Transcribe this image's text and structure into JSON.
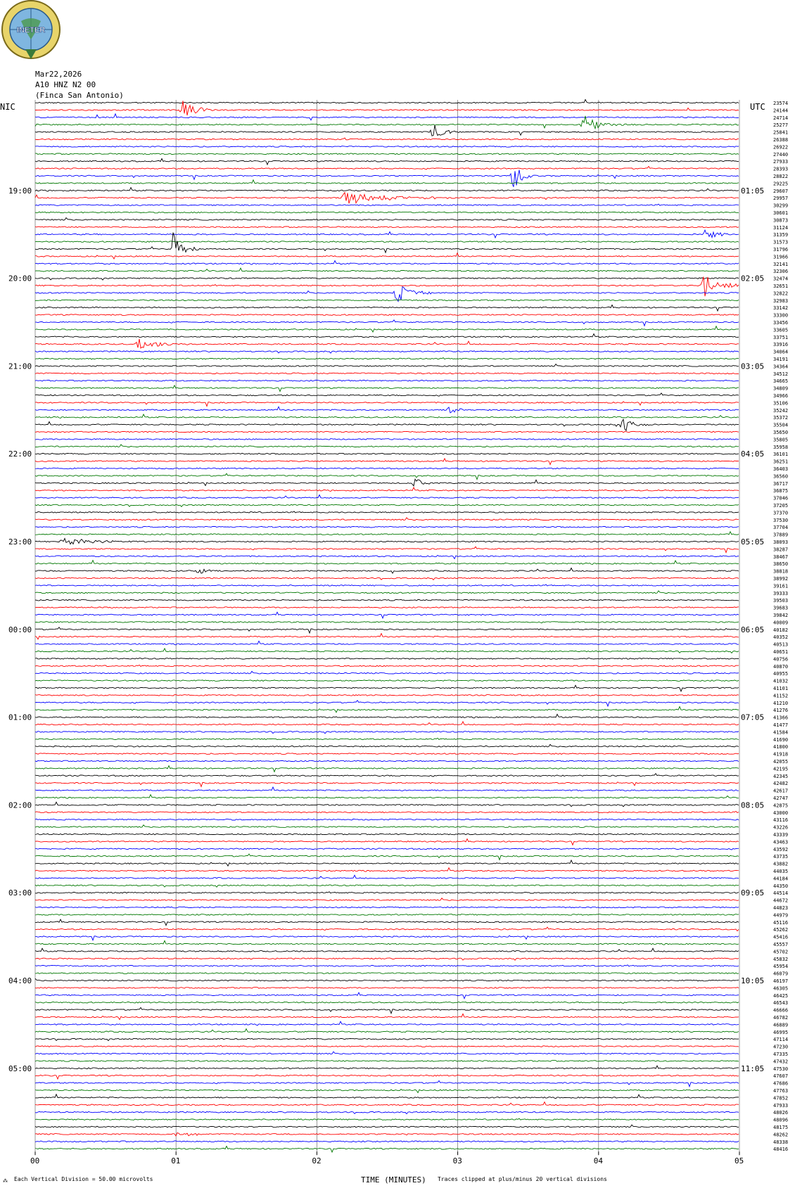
{
  "logo": {
    "text": "INETER"
  },
  "header": {
    "date": "Mar22,2026",
    "station": "A10 HNZ N2 00",
    "location": "(Finca San Antonio)"
  },
  "colors": {
    "trace": [
      "#000000",
      "#ff0000",
      "#0000ff",
      "#007700"
    ],
    "grid": "#808080"
  },
  "chart_data": {
    "type": "line",
    "left_timezone": "NIC",
    "right_timezone": "UTC",
    "left_hour_labels": [
      "19:00",
      "20:00",
      "21:00",
      "22:00",
      "23:00",
      "00:00",
      "01:00",
      "02:00",
      "03:00",
      "04:00",
      "05:00"
    ],
    "right_hour_labels": [
      "01:05",
      "02:05",
      "03:05",
      "04:05",
      "05:05",
      "06:05",
      "07:05",
      "08:05",
      "09:05",
      "10:05",
      "11:05"
    ],
    "first_hour_row": 12,
    "rows_per_hour": 12,
    "x_ticks": [
      "00",
      "01",
      "02",
      "03",
      "04",
      "05"
    ],
    "xlim": [
      0,
      5
    ],
    "xlabel": "TIME (MINUTES)",
    "footer_left": "Each Vertical Division =   50.00 microvolts",
    "footer_right": "Traces clipped at plus/minus 20 vertical divisions",
    "footer_mark": "⁂",
    "right_counts": [
      "23574",
      "24144",
      "24714",
      "25277",
      "25841",
      "26388",
      "26922",
      "27440",
      "27933",
      "28393",
      "28822",
      "29225",
      "29607",
      "29957",
      "30299",
      "30601",
      "30873",
      "31124",
      "31359",
      "31573",
      "31796",
      "31966",
      "32141",
      "32306",
      "32474",
      "32651",
      "32822",
      "32983",
      "33142",
      "33300",
      "33456",
      "33605",
      "33751",
      "33916",
      "34064",
      "34191",
      "34364",
      "34512",
      "34665",
      "34809",
      "34966",
      "35106",
      "35242",
      "35372",
      "35504",
      "35650",
      "35805",
      "35958",
      "36101",
      "36251",
      "36403",
      "36560",
      "36717",
      "36875",
      "37046",
      "37205",
      "37370",
      "37530",
      "37704",
      "37889",
      "38093",
      "38287",
      "38467",
      "38650",
      "38818",
      "38992",
      "39161",
      "39333",
      "39503",
      "39683",
      "39842",
      "40009",
      "40182",
      "40352",
      "40513",
      "40651",
      "40756",
      "40870",
      "40955",
      "41032",
      "41101",
      "41152",
      "41210",
      "41276",
      "41366",
      "41477",
      "41584",
      "41690",
      "41800",
      "41918",
      "42055",
      "42195",
      "42345",
      "42482",
      "42617",
      "42747",
      "42875",
      "43000",
      "43116",
      "43226",
      "43339",
      "43463",
      "43592",
      "43735",
      "43882",
      "44035",
      "44184",
      "44350",
      "44514",
      "44672",
      "44823",
      "44979",
      "45116",
      "45262",
      "45416",
      "45557",
      "45702",
      "45832",
      "45954",
      "46079",
      "46197",
      "46305",
      "46425",
      "46543",
      "46666",
      "46782",
      "46889",
      "46995",
      "47114",
      "47230",
      "47335",
      "47432",
      "47530",
      "47607",
      "47686",
      "47763",
      "47852",
      "47933",
      "48026",
      "48096",
      "48175",
      "48262",
      "48338",
      "48416"
    ],
    "events": [
      {
        "row": 1,
        "minute": 1.05,
        "amp": 14,
        "dur": 0.25
      },
      {
        "row": 3,
        "minute": 3.9,
        "amp": 14,
        "dur": 0.3
      },
      {
        "row": 4,
        "minute": 2.83,
        "amp": 12,
        "dur": 0.2
      },
      {
        "row": 10,
        "minute": 3.4,
        "amp": 22,
        "dur": 0.15
      },
      {
        "row": 13,
        "minute": 2.2,
        "amp": 10,
        "dur": 0.8
      },
      {
        "row": 18,
        "minute": 4.75,
        "amp": 8,
        "dur": 0.3
      },
      {
        "row": 20,
        "minute": 0.98,
        "amp": 24,
        "dur": 0.2
      },
      {
        "row": 25,
        "minute": 4.75,
        "amp": 18,
        "dur": 0.3
      },
      {
        "row": 26,
        "minute": 2.57,
        "amp": 14,
        "dur": 0.25
      },
      {
        "row": 33,
        "minute": 0.72,
        "amp": 9,
        "dur": 0.4
      },
      {
        "row": 42,
        "minute": 2.95,
        "amp": 10,
        "dur": 0.15
      },
      {
        "row": 44,
        "minute": 4.17,
        "amp": 12,
        "dur": 0.2
      },
      {
        "row": 52,
        "minute": 2.7,
        "amp": 7,
        "dur": 0.15
      },
      {
        "row": 60,
        "minute": 0.2,
        "amp": 6,
        "dur": 0.5
      },
      {
        "row": 64,
        "minute": 1.17,
        "amp": 6,
        "dur": 0.1
      },
      {
        "row": 141,
        "minute": 1.0,
        "amp": 5,
        "dur": 0.3
      }
    ]
  }
}
